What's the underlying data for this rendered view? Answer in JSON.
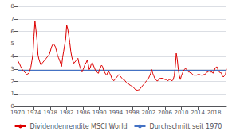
{
  "chart_data": {
    "type": "line",
    "title": "",
    "xlim": [
      1970,
      2021
    ],
    "ylim": [
      0,
      8
    ],
    "xticks": [
      1970,
      1974,
      1978,
      1982,
      1986,
      1990,
      1994,
      1998,
      2002,
      2006,
      2010,
      2014,
      2018
    ],
    "yticks": [
      0,
      1,
      2,
      3,
      4,
      5,
      6,
      7,
      8
    ],
    "grid": true,
    "legend": "bottom",
    "x": [
      1970,
      1970.25,
      1970.5,
      1970.75,
      1971,
      1971.25,
      1971.5,
      1971.75,
      1972,
      1972.25,
      1972.5,
      1972.75,
      1973,
      1973.25,
      1973.5,
      1973.75,
      1974,
      1974.25,
      1974.5,
      1974.75,
      1975,
      1975.25,
      1975.5,
      1975.75,
      1976,
      1976.25,
      1976.5,
      1976.75,
      1977,
      1977.25,
      1977.5,
      1977.75,
      1978,
      1978.25,
      1978.5,
      1978.75,
      1979,
      1979.25,
      1979.5,
      1979.75,
      1980,
      1980.25,
      1980.5,
      1980.75,
      1981,
      1981.25,
      1981.5,
      1981.75,
      1982,
      1982.25,
      1982.5,
      1982.75,
      1983,
      1983.25,
      1983.5,
      1983.75,
      1984,
      1984.25,
      1984.5,
      1984.75,
      1985,
      1985.25,
      1985.5,
      1985.75,
      1986,
      1986.25,
      1986.5,
      1986.75,
      1987,
      1987.25,
      1987.5,
      1987.75,
      1988,
      1988.25,
      1988.5,
      1988.75,
      1989,
      1989.25,
      1989.5,
      1989.75,
      1990,
      1990.25,
      1990.5,
      1990.75,
      1991,
      1991.25,
      1991.5,
      1991.75,
      1992,
      1992.25,
      1992.5,
      1992.75,
      1993,
      1993.25,
      1993.5,
      1993.75,
      1994,
      1994.25,
      1994.5,
      1994.75,
      1995,
      1995.25,
      1995.5,
      1995.75,
      1996,
      1996.25,
      1996.5,
      1996.75,
      1997,
      1997.25,
      1997.5,
      1997.75,
      1998,
      1998.25,
      1998.5,
      1998.75,
      1999,
      1999.25,
      1999.5,
      1999.75,
      2000,
      2000.25,
      2000.5,
      2000.75,
      2001,
      2001.25,
      2001.5,
      2001.75,
      2002,
      2002.25,
      2002.5,
      2002.75,
      2003,
      2003.25,
      2003.5,
      2003.75,
      2004,
      2004.25,
      2004.5,
      2004.75,
      2005,
      2005.25,
      2005.5,
      2005.75,
      2006,
      2006.25,
      2006.5,
      2006.75,
      2007,
      2007.25,
      2007.5,
      2007.75,
      2008,
      2008.25,
      2008.5,
      2008.75,
      2009,
      2009.25,
      2009.5,
      2009.75,
      2010,
      2010.25,
      2010.5,
      2010.75,
      2011,
      2011.25,
      2011.5,
      2011.75,
      2012,
      2012.25,
      2012.5,
      2012.75,
      2013,
      2013.25,
      2013.5,
      2013.75,
      2014,
      2014.25,
      2014.5,
      2014.75,
      2015,
      2015.25,
      2015.5,
      2015.75,
      2016,
      2016.25,
      2016.5,
      2016.75,
      2017,
      2017.25,
      2017.5,
      2017.75,
      2018,
      2018.25,
      2018.5,
      2018.75,
      2019,
      2019.25,
      2019.5,
      2019.75,
      2020,
      2020.25,
      2020.5,
      2020.75,
      2021
    ],
    "series": [
      {
        "name": "Dividendenrendite MSCI World",
        "color": "#dd0000",
        "type": "line",
        "values": [
          3.7,
          3.55,
          3.4,
          3.2,
          3.05,
          2.9,
          2.8,
          2.75,
          2.65,
          2.55,
          2.6,
          2.65,
          2.85,
          3.15,
          3.65,
          4.15,
          5.6,
          6.8,
          6.1,
          5.3,
          4.1,
          3.75,
          3.5,
          3.3,
          3.45,
          3.55,
          3.65,
          3.75,
          3.85,
          3.95,
          4.05,
          4.15,
          4.4,
          4.7,
          4.9,
          5.0,
          4.9,
          4.75,
          4.45,
          4.1,
          3.9,
          3.7,
          3.45,
          3.2,
          3.9,
          4.4,
          4.9,
          5.4,
          6.5,
          6.2,
          5.7,
          5.1,
          4.4,
          3.95,
          3.65,
          3.45,
          3.55,
          3.65,
          3.75,
          3.85,
          3.45,
          3.15,
          2.95,
          2.75,
          2.95,
          3.15,
          3.4,
          3.5,
          3.7,
          3.4,
          2.95,
          3.1,
          3.4,
          3.5,
          3.3,
          3.1,
          2.9,
          2.8,
          2.7,
          2.65,
          2.95,
          3.1,
          3.3,
          3.2,
          2.9,
          2.75,
          2.6,
          2.5,
          2.7,
          2.8,
          2.65,
          2.5,
          2.25,
          2.15,
          2.05,
          2.15,
          2.25,
          2.35,
          2.45,
          2.55,
          2.45,
          2.35,
          2.25,
          2.15,
          2.15,
          2.05,
          1.95,
          1.85,
          1.85,
          1.75,
          1.7,
          1.65,
          1.6,
          1.55,
          1.45,
          1.35,
          1.32,
          1.3,
          1.32,
          1.34,
          1.45,
          1.55,
          1.65,
          1.75,
          1.85,
          1.95,
          2.05,
          2.15,
          2.25,
          2.45,
          2.65,
          2.95,
          2.65,
          2.45,
          2.25,
          2.15,
          2.05,
          2.05,
          2.15,
          2.25,
          2.25,
          2.25,
          2.25,
          2.2,
          2.15,
          2.15,
          2.1,
          2.05,
          2.15,
          2.15,
          2.1,
          2.05,
          2.15,
          2.45,
          3.15,
          4.25,
          3.75,
          2.95,
          2.45,
          2.15,
          2.45,
          2.65,
          2.85,
          2.95,
          3.05,
          2.95,
          2.85,
          2.75,
          2.75,
          2.65,
          2.65,
          2.55,
          2.5,
          2.5,
          2.5,
          2.5,
          2.55,
          2.55,
          2.55,
          2.5,
          2.5,
          2.5,
          2.55,
          2.55,
          2.65,
          2.75,
          2.75,
          2.85,
          2.75,
          2.75,
          2.75,
          2.65,
          2.85,
          3.05,
          3.15,
          3.15,
          2.85,
          2.75,
          2.7,
          2.68,
          2.45,
          2.35,
          2.45,
          2.55,
          3.0
        ]
      },
      {
        "name": "Durchschnitt seit 1970",
        "color": "#4472c4",
        "type": "hline",
        "value": 2.88
      }
    ]
  }
}
